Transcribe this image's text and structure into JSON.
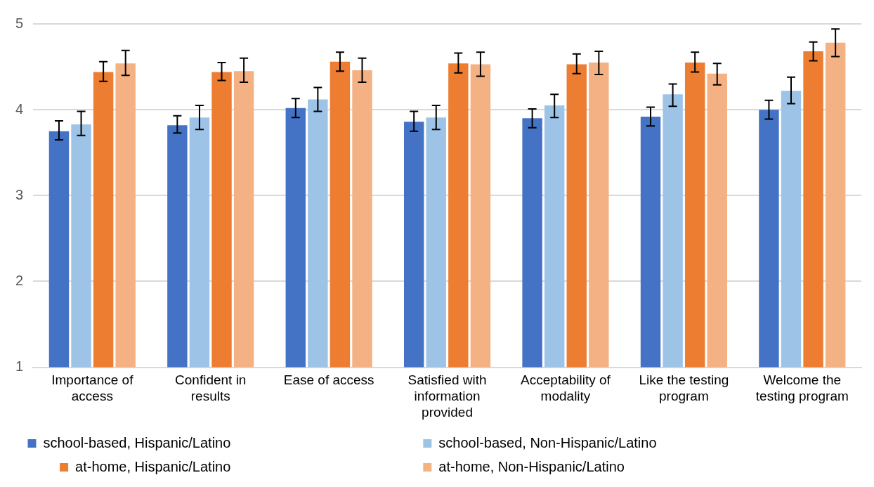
{
  "chart_data": {
    "type": "bar",
    "categories": [
      "Importance of access",
      "Confident in results",
      "Ease of access",
      "Satisfied with information provided",
      "Acceptability of modality",
      "Like the testing program",
      "Welcome the testing program"
    ],
    "series": [
      {
        "name": "school-based, Hispanic/Latino",
        "color": "#4472c4",
        "values": [
          3.75,
          3.82,
          4.02,
          3.86,
          3.9,
          3.92,
          4.0
        ],
        "errors": [
          [
            3.65,
            3.87
          ],
          [
            3.73,
            3.93
          ],
          [
            3.91,
            4.13
          ],
          [
            3.75,
            3.98
          ],
          [
            3.79,
            4.01
          ],
          [
            3.81,
            4.03
          ],
          [
            3.89,
            4.11
          ]
        ]
      },
      {
        "name": "school-based, Non-Hispanic/Latino",
        "color": "#9dc3e6",
        "values": [
          3.83,
          3.91,
          4.12,
          3.91,
          4.05,
          4.18,
          4.22
        ],
        "errors": [
          [
            3.7,
            3.98
          ],
          [
            3.77,
            4.05
          ],
          [
            3.98,
            4.26
          ],
          [
            3.77,
            4.05
          ],
          [
            3.91,
            4.18
          ],
          [
            4.04,
            4.3
          ],
          [
            4.07,
            4.38
          ]
        ]
      },
      {
        "name": "at-home, Hispanic/Latino",
        "color": "#ed7d31",
        "values": [
          4.44,
          4.44,
          4.56,
          4.54,
          4.53,
          4.55,
          4.68
        ],
        "errors": [
          [
            4.33,
            4.56
          ],
          [
            4.34,
            4.55
          ],
          [
            4.45,
            4.67
          ],
          [
            4.43,
            4.66
          ],
          [
            4.42,
            4.65
          ],
          [
            4.44,
            4.67
          ],
          [
            4.57,
            4.79
          ]
        ]
      },
      {
        "name": "at-home, Non-Hispanic/Latino",
        "color": "#f4b183",
        "values": [
          4.54,
          4.45,
          4.46,
          4.53,
          4.55,
          4.42,
          4.78
        ],
        "errors": [
          [
            4.4,
            4.69
          ],
          [
            4.32,
            4.6
          ],
          [
            4.32,
            4.6
          ],
          [
            4.39,
            4.67
          ],
          [
            4.41,
            4.68
          ],
          [
            4.29,
            4.54
          ],
          [
            4.62,
            4.94
          ]
        ]
      }
    ],
    "ylim": [
      1,
      5
    ],
    "yticks": [
      1,
      2,
      3,
      4,
      5
    ],
    "grid": "y",
    "legend": "bottom"
  }
}
